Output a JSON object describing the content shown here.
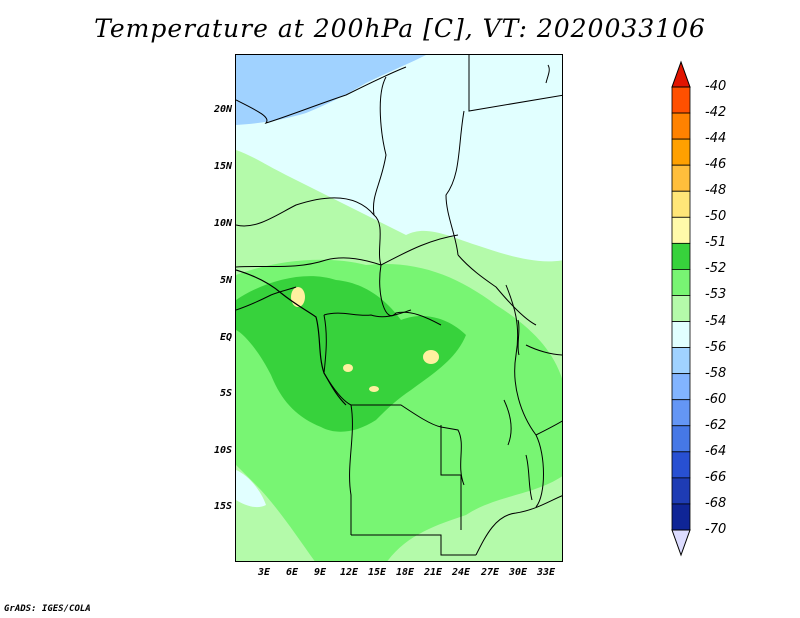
{
  "title": "Temperature at 200hPa [C], VT: 2020033106",
  "credit": "GrADS: IGES/COLA",
  "map": {
    "lat_labels": [
      "20N",
      "15N",
      "10N",
      "5N",
      "EQ",
      "5S",
      "10S",
      "15S"
    ],
    "lon_labels": [
      "3E",
      "6E",
      "9E",
      "12E",
      "15E",
      "18E",
      "21E",
      "24E",
      "27E",
      "30E",
      "33E"
    ],
    "colors": {
      "c_neg54": "#e1ffff",
      "c_neg53": "#b4faaa",
      "c_neg52": "#78f573",
      "c_neg51": "#37d23c",
      "c_neg56": "#a0d2ff",
      "c_neg50": "#fff0a0"
    }
  },
  "colorbar": {
    "labels": [
      "-40",
      "-42",
      "-44",
      "-46",
      "-48",
      "-50",
      "-51",
      "-52",
      "-53",
      "-54",
      "-56",
      "-58",
      "-60",
      "-62",
      "-64",
      "-66",
      "-68",
      "-70"
    ],
    "colors": [
      "#ff1e00",
      "#ff5000",
      "#ff8200",
      "#ffa000",
      "#ffbe3c",
      "#ffe678",
      "#fffaaa",
      "#37d23c",
      "#78f573",
      "#b4faaa",
      "#e1ffff",
      "#a0d2ff",
      "#82b4ff",
      "#6496f5",
      "#4678e6",
      "#2850d2",
      "#1e3cb4",
      "#0f2596",
      "#140a6e"
    ],
    "top_triangle_color": "#e11400",
    "bottom_triangle_color": "#dcdcff"
  }
}
